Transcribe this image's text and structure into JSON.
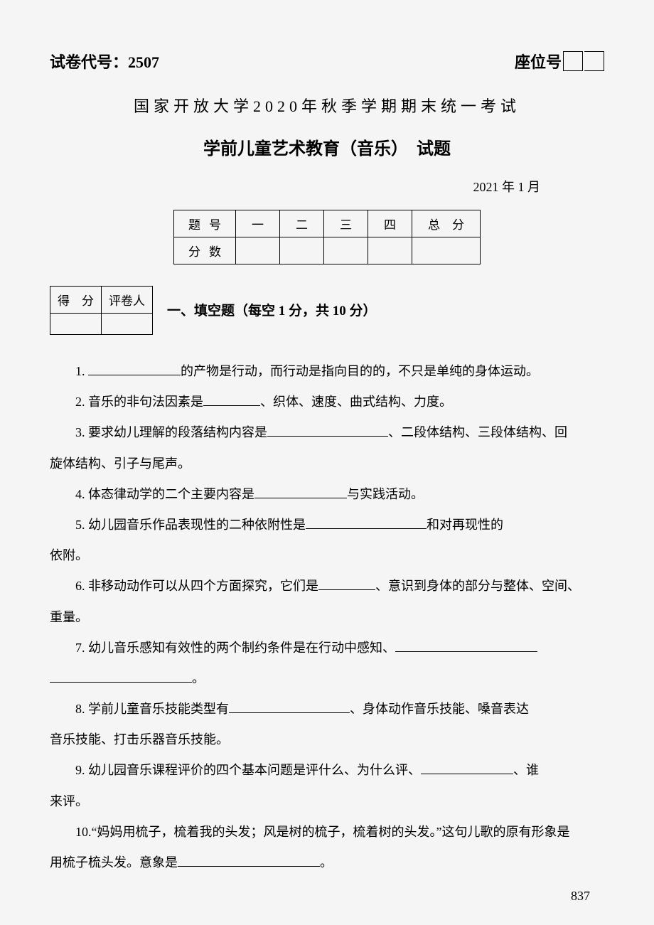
{
  "header": {
    "paper_code_label": "试卷代号：",
    "paper_code": "2507",
    "seat_label": "座位号"
  },
  "university_line": "国家开放大学2020年秋季学期期末统一考试",
  "exam_title": "学前儿童艺术教育（音乐）　试题",
  "exam_date": "2021 年 1 月",
  "score_table": {
    "row1": [
      "题号",
      "一",
      "二",
      "三",
      "四",
      "总　分"
    ],
    "row2": [
      "分数",
      "",
      "",
      "",
      "",
      ""
    ]
  },
  "grade_box": {
    "r1c1": "得　分",
    "r1c2": "评卷人",
    "r2c1": "",
    "r2c2": ""
  },
  "section1_title": "一、填空题（每空 1 分，共 10 分）",
  "questions": {
    "q1": "1. ",
    "q1b": "的产物是行动，而行动是指向目的的，不只是单纯的身体运动。",
    "q2": "2. 音乐的非句法因素是",
    "q2b": "、织体、速度、曲式结构、力度。",
    "q3": "3. 要求幼儿理解的段落结构内容是",
    "q3b": "、二段体结构、三段体结构、回",
    "q3c": "旋体结构、引子与尾声。",
    "q4": "4. 体态律动学的二个主要内容是",
    "q4b": "与实践活动。",
    "q5": "5. 幼儿园音乐作品表现性的二种依附性是",
    "q5b": "和对再现性的",
    "q5c": "依附。",
    "q6": "6. 非移动动作可以从四个方面探究，它们是",
    "q6b": "、意识到身体的部分与整体、空间、",
    "q6c": "重量。",
    "q7": "7. 幼儿音乐感知有效性的两个制约条件是在行动中感知、",
    "q7b": "。",
    "q8": "8. 学前儿童音乐技能类型有",
    "q8b": "、身体动作音乐技能、嗓音表达",
    "q8c": "音乐技能、打击乐器音乐技能。",
    "q9": "9. 幼儿园音乐课程评价的四个基本问题是评什么、为什么评、",
    "q9b": "、谁",
    "q9c": "来评。",
    "q10": "10.“妈妈用梳子，梳着我的头发；风是树的梳子，梳着树的头发。”这句儿歌的原有形象是",
    "q10b": "用梳子梳头发。意象是",
    "q10c": "。"
  },
  "page_number": "837",
  "colors": {
    "background": "#f5f5f5",
    "text": "#000000",
    "border": "#000000"
  },
  "typography": {
    "body_font": "SimSun",
    "title_size_pt": 24,
    "body_size_pt": 18
  }
}
